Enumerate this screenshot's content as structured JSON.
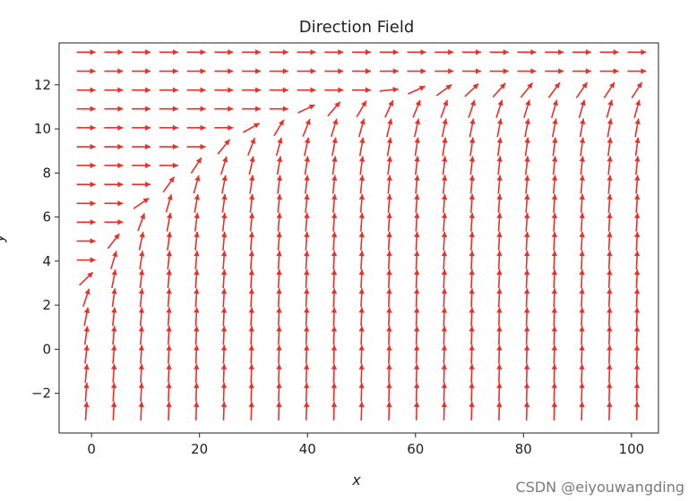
{
  "chart_data": {
    "type": "quiver",
    "title": "Direction Field",
    "xlabel": "x",
    "ylabel": "y",
    "xlim": [
      -6,
      105
    ],
    "ylim": [
      -3.8,
      13.9
    ],
    "xticks": [
      0,
      20,
      40,
      60,
      80,
      100
    ],
    "yticks": [
      -2,
      0,
      2,
      4,
      6,
      8,
      10,
      12
    ],
    "grid_x": [
      -1,
      4.1,
      9.2,
      14.3,
      19.4,
      24.5,
      29.6,
      34.7,
      39.8,
      44.9,
      50,
      55.1,
      60.2,
      65.3,
      70.4,
      75.5,
      80.6,
      85.7,
      90.8,
      95.9,
      101
    ],
    "grid_y": [
      -2.8,
      -1.94,
      -1.09,
      -0.23,
      0.63,
      1.48,
      2.34,
      3.2,
      4.05,
      4.91,
      5.77,
      6.62,
      7.48,
      8.34,
      9.19,
      10.05,
      10.91,
      11.76,
      12.62,
      13.48
    ],
    "arrow_color": "#e8302a",
    "grid": false
  },
  "watermark": "CSDN @eiyouwangding"
}
